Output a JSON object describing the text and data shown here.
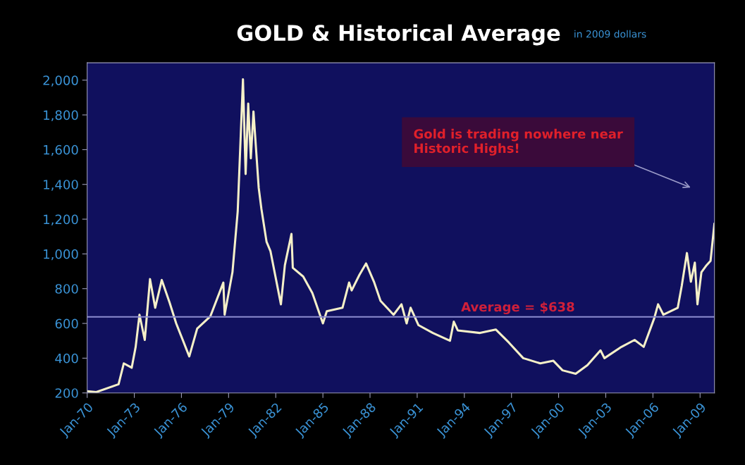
{
  "chart_data": {
    "type": "line",
    "title": "GOLD & Historical Average",
    "subtitle": "in 2009 dollars",
    "x": [
      "1970-01",
      "1970-08",
      "1972-01",
      "1972-05",
      "1972-11",
      "1973-02",
      "1973-05",
      "1973-09",
      "1974-01",
      "1974-05",
      "1974-10",
      "1975-04",
      "1975-09",
      "1976-07",
      "1977-01",
      "1977-11",
      "1978-09",
      "1978-10",
      "1979-04",
      "1979-08",
      "1979-12",
      "1980-02",
      "1980-04",
      "1980-06",
      "1980-08",
      "1980-12",
      "1981-02",
      "1981-06",
      "1981-09",
      "1982-05",
      "1982-08",
      "1983-01",
      "1983-02",
      "1983-10",
      "1984-05",
      "1985-01",
      "1985-04",
      "1986-04",
      "1986-09",
      "1986-11",
      "1987-05",
      "1987-10",
      "1988-04",
      "1988-09",
      "1989-07",
      "1990-01",
      "1990-05",
      "1990-08",
      "1991-02",
      "1992-01",
      "1993-02",
      "1993-05",
      "1993-08",
      "1995-01",
      "1996-01",
      "1996-11",
      "1997-10",
      "1998-11",
      "1999-09",
      "2000-04",
      "2001-02",
      "2001-11",
      "2002-09",
      "2002-12",
      "2004-01",
      "2004-11",
      "2005-06",
      "2006-02",
      "2006-05",
      "2006-09",
      "2007-08",
      "2007-11",
      "2008-03",
      "2008-06",
      "2008-09",
      "2008-11",
      "2009-02",
      "2009-06",
      "2009-09",
      "2009-12"
    ],
    "series": [
      {
        "color": "#f5f0c8",
        "values": [
          210,
          205,
          250,
          370,
          345,
          465,
          650,
          505,
          855,
          690,
          850,
          720,
          600,
          410,
          570,
          640,
          835,
          650,
          895,
          1245,
          2005,
          1460,
          1865,
          1550,
          1820,
          1380,
          1260,
          1070,
          1015,
          710,
          935,
          1115,
          920,
          870,
          775,
          600,
          670,
          690,
          835,
          790,
          880,
          945,
          840,
          730,
          650,
          710,
          600,
          690,
          590,
          545,
          500,
          610,
          560,
          545,
          565,
          490,
          400,
          370,
          385,
          330,
          310,
          360,
          445,
          400,
          465,
          505,
          465,
          630,
          710,
          650,
          690,
          815,
          1005,
          840,
          950,
          710,
          895,
          935,
          960,
          1175
        ]
      }
    ],
    "xlim": [
      "1970-01",
      "2009-12"
    ],
    "xticks": [
      {
        "value": "1970-01",
        "label": "Jan-70"
      },
      {
        "value": "1973-01",
        "label": "Jan-73"
      },
      {
        "value": "1976-01",
        "label": "Jan-76"
      },
      {
        "value": "1979-01",
        "label": "Jan-79"
      },
      {
        "value": "1982-01",
        "label": "Jan-82"
      },
      {
        "value": "1985-01",
        "label": "Jan-85"
      },
      {
        "value": "1988-01",
        "label": "Jan-88"
      },
      {
        "value": "1991-01",
        "label": "Jan-91"
      },
      {
        "value": "1994-01",
        "label": "Jan-94"
      },
      {
        "value": "1997-01",
        "label": "Jan-97"
      },
      {
        "value": "2000-01",
        "label": "Jan-00"
      },
      {
        "value": "2003-01",
        "label": "Jan-03"
      },
      {
        "value": "2006-01",
        "label": "Jan-06"
      },
      {
        "value": "2009-01",
        "label": "Jan-09"
      }
    ],
    "ylim": [
      200,
      2100
    ],
    "yticks": [
      200,
      400,
      600,
      800,
      {
        "value": 1000,
        "label": "1,000"
      },
      {
        "value": 1200,
        "label": "1,200"
      },
      {
        "value": 1400,
        "label": "1,400"
      },
      {
        "value": 1600,
        "label": "1,600"
      },
      {
        "value": 1800,
        "label": "1,800"
      },
      {
        "value": 2000,
        "label": "2,000"
      }
    ],
    "ref_lines": [
      {
        "axis": "y",
        "value": 638,
        "label": "Average = $638",
        "color": "#8c8cd0"
      }
    ],
    "annotations": [
      "Gold is trading nowhere near\nHistoric Highs!"
    ],
    "grid": false,
    "legend": false,
    "marker": "none",
    "line_style": "solid"
  }
}
